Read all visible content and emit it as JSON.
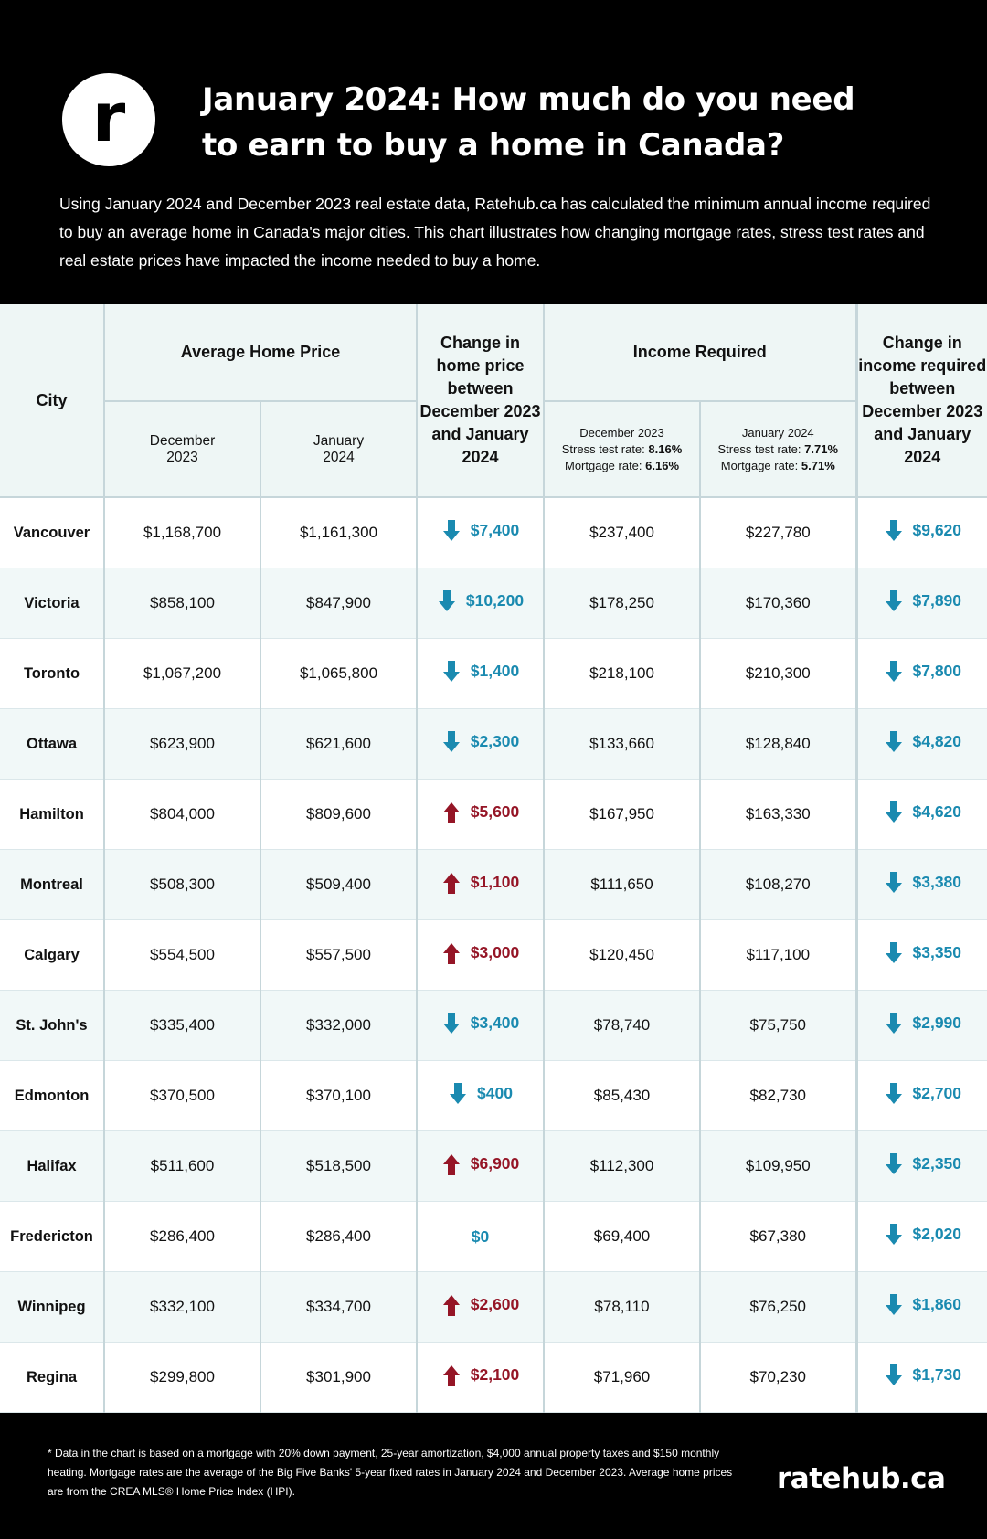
{
  "header": {
    "logo_text": "r",
    "title": "January 2024: How much do you need to earn to buy a home in Canada?",
    "intro": "Using January 2024 and December 2023 real estate data, Ratehub.ca has calculated the minimum annual income required to buy an average home in Canada's major cities. This chart illustrates how changing mortgage rates, stress test rates and real estate prices have impacted the income needed to buy a home."
  },
  "chart_data": {
    "type": "table",
    "headers": {
      "city": "City",
      "avg_price": "Average Home Price",
      "avg_dec": "December 2023",
      "avg_jan": "January 2024",
      "price_change": "Change in home price between December 2023 and January 2024",
      "income": "Income Required",
      "inc_dec": {
        "label": "December 2023",
        "stress_label": "Stress test rate:",
        "stress_value": "8.16%",
        "mortgage_label": "Mortgage rate:",
        "mortgage_value": "6.16%"
      },
      "inc_jan": {
        "label": "January 2024",
        "stress_label": "Stress test rate:",
        "stress_value": "7.71%",
        "mortgage_label": "Mortgage rate:",
        "mortgage_value": "5.71%"
      },
      "income_change": "Change in income required between December 2023 and January 2024"
    },
    "rows": [
      {
        "city": "Vancouver",
        "price_dec": "$1,168,700",
        "price_jan": "$1,161,300",
        "price_change": "$7,400",
        "price_dir": "down",
        "income_dec": "$237,400",
        "income_jan": "$227,780",
        "income_change": "$9,620",
        "income_dir": "down"
      },
      {
        "city": "Victoria",
        "price_dec": "$858,100",
        "price_jan": "$847,900",
        "price_change": "$10,200",
        "price_dir": "down",
        "income_dec": "$178,250",
        "income_jan": "$170,360",
        "income_change": "$7,890",
        "income_dir": "down"
      },
      {
        "city": "Toronto",
        "price_dec": "$1,067,200",
        "price_jan": "$1,065,800",
        "price_change": "$1,400",
        "price_dir": "down",
        "income_dec": "$218,100",
        "income_jan": "$210,300",
        "income_change": "$7,800",
        "income_dir": "down"
      },
      {
        "city": "Ottawa",
        "price_dec": "$623,900",
        "price_jan": "$621,600",
        "price_change": "$2,300",
        "price_dir": "down",
        "income_dec": "$133,660",
        "income_jan": "$128,840",
        "income_change": "$4,820",
        "income_dir": "down"
      },
      {
        "city": "Hamilton",
        "price_dec": "$804,000",
        "price_jan": "$809,600",
        "price_change": "$5,600",
        "price_dir": "up",
        "income_dec": "$167,950",
        "income_jan": "$163,330",
        "income_change": "$4,620",
        "income_dir": "down"
      },
      {
        "city": "Montreal",
        "price_dec": "$508,300",
        "price_jan": "$509,400",
        "price_change": "$1,100",
        "price_dir": "up",
        "income_dec": "$111,650",
        "income_jan": "$108,270",
        "income_change": "$3,380",
        "income_dir": "down"
      },
      {
        "city": "Calgary",
        "price_dec": "$554,500",
        "price_jan": "$557,500",
        "price_change": "$3,000",
        "price_dir": "up",
        "income_dec": "$120,450",
        "income_jan": "$117,100",
        "income_change": "$3,350",
        "income_dir": "down"
      },
      {
        "city": "St. John's",
        "price_dec": "$335,400",
        "price_jan": "$332,000",
        "price_change": "$3,400",
        "price_dir": "down",
        "income_dec": "$78,740",
        "income_jan": "$75,750",
        "income_change": "$2,990",
        "income_dir": "down"
      },
      {
        "city": "Edmonton",
        "price_dec": "$370,500",
        "price_jan": "$370,100",
        "price_change": "$400",
        "price_dir": "down",
        "income_dec": "$85,430",
        "income_jan": "$82,730",
        "income_change": "$2,700",
        "income_dir": "down"
      },
      {
        "city": "Halifax",
        "price_dec": "$511,600",
        "price_jan": "$518,500",
        "price_change": "$6,900",
        "price_dir": "up",
        "income_dec": "$112,300",
        "income_jan": "$109,950",
        "income_change": "$2,350",
        "income_dir": "down"
      },
      {
        "city": "Fredericton",
        "price_dec": "$286,400",
        "price_jan": "$286,400",
        "price_change": "$0",
        "price_dir": "none",
        "income_dec": "$69,400",
        "income_jan": "$67,380",
        "income_change": "$2,020",
        "income_dir": "down"
      },
      {
        "city": "Winnipeg",
        "price_dec": "$332,100",
        "price_jan": "$334,700",
        "price_change": "$2,600",
        "price_dir": "up",
        "income_dec": "$78,110",
        "income_jan": "$76,250",
        "income_change": "$1,860",
        "income_dir": "down"
      },
      {
        "city": "Regina",
        "price_dec": "$299,800",
        "price_jan": "$301,900",
        "price_change": "$2,100",
        "price_dir": "up",
        "income_dec": "$71,960",
        "income_jan": "$70,230",
        "income_change": "$1,730",
        "income_dir": "down"
      }
    ]
  },
  "colors": {
    "decrease": "#1a8ab0",
    "increase": "#951526",
    "header_bg": "#eef6f5",
    "alt_row_bg": "#f1f8f8"
  },
  "icons": {
    "decrease": "down-arrow-icon",
    "increase": "up-arrow-icon"
  },
  "footer": {
    "footnote": "* Data in the chart is based on a mortgage with 20% down payment, 25-year amortization, $4,000 annual property taxes and $150 monthly heating. Mortgage rates are the average of the Big Five Banks' 5-year fixed rates in January 2024 and December 2023. Average home prices are from the CREA MLS® Home Price Index (HPI).",
    "brand": "ratehub.ca"
  }
}
